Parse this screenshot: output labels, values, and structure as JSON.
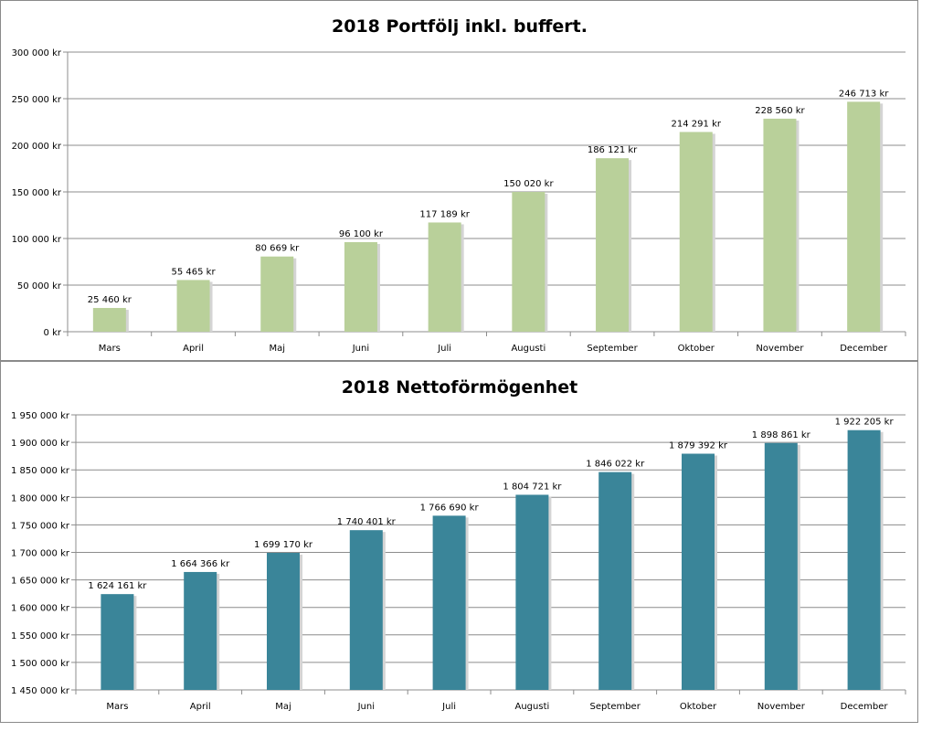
{
  "chart_data": [
    {
      "type": "bar",
      "title": "2018 Portfölj inkl. buffert.",
      "xlabel": "",
      "ylabel": "",
      "categories": [
        "Mars",
        "April",
        "Maj",
        "Juni",
        "Juli",
        "Augusti",
        "September",
        "Oktober",
        "November",
        "December"
      ],
      "values": [
        25460,
        55465,
        80669,
        96100,
        117189,
        150020,
        186121,
        214291,
        228560,
        246713
      ],
      "value_labels": [
        "25 460 kr",
        "55 465 kr",
        "80 669 kr",
        "96 100 kr",
        "117 189 kr",
        "150 020 kr",
        "186 121 kr",
        "214 291 kr",
        "228 560 kr",
        "246 713 kr"
      ],
      "ylim": [
        0,
        300000
      ],
      "yticks": [
        0,
        50000,
        100000,
        150000,
        200000,
        250000,
        300000
      ],
      "ytick_labels": [
        "0 kr",
        "50 000 kr",
        "100 000 kr",
        "150 000 kr",
        "200 000 kr",
        "250 000 kr",
        "300 000 kr"
      ],
      "grid": true,
      "legend": "none",
      "color": "#b9d09a"
    },
    {
      "type": "bar",
      "title": "2018 Nettoförmögenhet",
      "xlabel": "",
      "ylabel": "",
      "categories": [
        "Mars",
        "April",
        "Maj",
        "Juni",
        "Juli",
        "Augusti",
        "September",
        "Oktober",
        "November",
        "December"
      ],
      "values": [
        1624161,
        1664366,
        1699170,
        1740401,
        1766690,
        1804721,
        1846022,
        1879392,
        1898861,
        1922205
      ],
      "value_labels": [
        "1 624 161 kr",
        "1 664 366 kr",
        "1 699 170 kr",
        "1 740 401 kr",
        "1 766 690 kr",
        "1 804 721 kr",
        "1 846 022 kr",
        "1 879 392 kr",
        "1 898 861 kr",
        "1 922 205 kr"
      ],
      "ylim": [
        1450000,
        1950000
      ],
      "yticks": [
        1450000,
        1500000,
        1550000,
        1600000,
        1650000,
        1700000,
        1750000,
        1800000,
        1850000,
        1900000,
        1950000
      ],
      "ytick_labels": [
        "1 450 000 kr",
        "1 500 000 kr",
        "1 550 000 kr",
        "1 600 000 kr",
        "1 650 000 kr",
        "1 700 000 kr",
        "1 750 000 kr",
        "1 800 000 kr",
        "1 850 000 kr",
        "1 900 000 kr",
        "1 950 000 kr"
      ],
      "grid": true,
      "legend": "none",
      "color": "#3a8599"
    }
  ]
}
